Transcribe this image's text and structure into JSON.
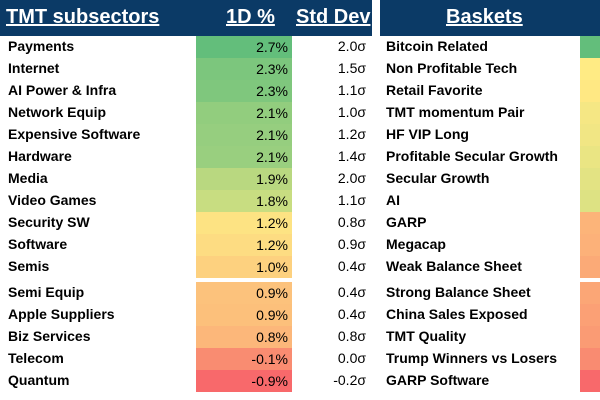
{
  "left_table": {
    "headers": {
      "name": "TMT subsectors",
      "change": "1D %",
      "stddev": "Std Dev"
    },
    "rows": [
      {
        "name": "Payments",
        "change": "2.7%",
        "stddev": "2.0σ",
        "color": "#63be7b"
      },
      {
        "name": "Internet",
        "change": "2.3%",
        "stddev": "1.5σ",
        "color": "#7cc67d"
      },
      {
        "name": "AI Power & Infra",
        "change": "2.3%",
        "stddev": "1.1σ",
        "color": "#7fc77d"
      },
      {
        "name": "Network Equip",
        "change": "2.1%",
        "stddev": "1.0σ",
        "color": "#92cd7e"
      },
      {
        "name": "Expensive Software",
        "change": "2.1%",
        "stddev": "1.2σ",
        "color": "#96ce7f"
      },
      {
        "name": "Hardware",
        "change": "2.1%",
        "stddev": "1.4σ",
        "color": "#99cf7f"
      },
      {
        "name": "Media",
        "change": "1.9%",
        "stddev": "2.0σ",
        "color": "#b9d880"
      },
      {
        "name": "Video Games",
        "change": "1.8%",
        "stddev": "1.1σ",
        "color": "#c8dd81"
      },
      {
        "name": "Security SW",
        "change": "1.2%",
        "stddev": "0.8σ",
        "color": "#fde383"
      },
      {
        "name": "Software",
        "change": "1.2%",
        "stddev": "0.9σ",
        "color": "#fddc82"
      },
      {
        "name": "Semis",
        "change": "1.0%",
        "stddev": "0.4σ",
        "color": "#fdd17f"
      },
      {
        "name": "Semi Equip",
        "change": "0.9%",
        "stddev": "0.4σ",
        "color": "#fcc27c"
      },
      {
        "name": "Apple Suppliers",
        "change": "0.9%",
        "stddev": "0.4σ",
        "color": "#fcc07b"
      },
      {
        "name": "Biz Services",
        "change": "0.8%",
        "stddev": "0.8σ",
        "color": "#fcb77a"
      },
      {
        "name": "Telecom",
        "change": "-0.1%",
        "stddev": "0.0σ",
        "color": "#f98c71"
      },
      {
        "name": "Quantum",
        "change": "-0.9%",
        "stddev": "-0.2σ",
        "color": "#f8696b"
      }
    ]
  },
  "right_table": {
    "headers": {
      "name": "Baskets"
    },
    "rows": [
      {
        "name": "Bitcoin Related",
        "color": "#63be7b"
      },
      {
        "name": "Non Profitable Tech",
        "color": "#ffeb84"
      },
      {
        "name": "Retail Favorite",
        "color": "#ffe883"
      },
      {
        "name": "TMT momentum Pair",
        "color": "#f5e784"
      },
      {
        "name": "HF VIP Long",
        "color": "#f1e684"
      },
      {
        "name": "Profitable Secular Growth",
        "color": "#eae583"
      },
      {
        "name": "Secular Growth",
        "color": "#e3e383"
      },
      {
        "name": "AI",
        "color": "#dde283"
      },
      {
        "name": "GARP",
        "color": "#fcb479"
      },
      {
        "name": "Megacap",
        "color": "#fcb179"
      },
      {
        "name": "Weak Balance Sheet",
        "color": "#fbaa77"
      },
      {
        "name": "Strong Balance Sheet",
        "color": "#fba676"
      },
      {
        "name": "China Sales Exposed",
        "color": "#fba075"
      },
      {
        "name": "TMT Quality",
        "color": "#fa9b74"
      },
      {
        "name": "Trump Winners vs Losers",
        "color": "#f98b71"
      },
      {
        "name": "GARP Software",
        "color": "#f8696b"
      }
    ]
  }
}
